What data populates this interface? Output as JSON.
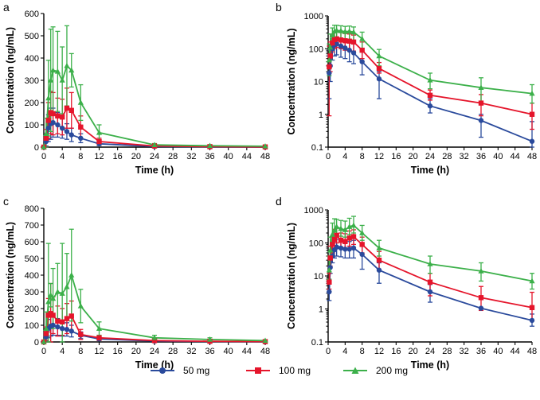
{
  "legend": [
    {
      "label": "50 mg",
      "color": "#2a4a9c",
      "marker": "circle"
    },
    {
      "label": "100 mg",
      "color": "#e5152b",
      "marker": "square"
    },
    {
      "label": "200 mg",
      "color": "#3cb04a",
      "marker": "triangle"
    }
  ],
  "chart_data": [
    {
      "panel": "a",
      "type": "line",
      "yscale": "linear",
      "xlabel": "Time (h)",
      "ylabel": "Concentration (ng/mL)",
      "xlim": [
        0,
        48
      ],
      "ylim": [
        0,
        600
      ],
      "xticks": [
        0,
        4,
        8,
        12,
        16,
        20,
        24,
        28,
        32,
        36,
        40,
        44,
        48
      ],
      "yticks": [
        0,
        100,
        200,
        300,
        400,
        500,
        600
      ],
      "x": [
        0,
        0.5,
        1,
        1.5,
        2,
        3,
        4,
        5,
        6,
        8,
        12,
        24,
        36,
        48
      ],
      "series": [
        {
          "name": "50 mg",
          "values": [
            0,
            25,
            85,
            105,
            110,
            100,
            85,
            70,
            55,
            40,
            15,
            3,
            1,
            0.2
          ],
          "err": [
            0,
            20,
            60,
            70,
            65,
            55,
            45,
            35,
            30,
            20,
            8,
            2,
            1,
            0.3
          ]
        },
        {
          "name": "100 mg",
          "values": [
            0,
            40,
            120,
            155,
            150,
            140,
            135,
            175,
            165,
            90,
            25,
            5,
            2,
            1
          ],
          "err": [
            0,
            40,
            80,
            95,
            95,
            80,
            80,
            90,
            80,
            50,
            15,
            3,
            2,
            1
          ]
        },
        {
          "name": "200 mg",
          "values": [
            0,
            60,
            220,
            300,
            345,
            340,
            300,
            365,
            345,
            200,
            65,
            10,
            6,
            4
          ],
          "err": [
            0,
            70,
            170,
            230,
            195,
            180,
            150,
            180,
            75,
            80,
            35,
            6,
            5,
            3
          ]
        }
      ]
    },
    {
      "panel": "b",
      "type": "line",
      "yscale": "log",
      "xlabel": "Time (h)",
      "ylabel": "Concentration (ng/mL)",
      "xlim": [
        0,
        48
      ],
      "ylim": [
        0.1,
        1000
      ],
      "xticks": [
        0,
        4,
        8,
        12,
        16,
        20,
        24,
        28,
        32,
        36,
        40,
        44,
        48
      ],
      "yticks": [
        0.1,
        1,
        10,
        100,
        1000
      ],
      "x": [
        0.25,
        0.5,
        1,
        1.5,
        2,
        3,
        4,
        5,
        6,
        8,
        12,
        24,
        36,
        48
      ],
      "series": [
        {
          "name": "50 mg",
          "values": [
            18,
            30,
            100,
            130,
            140,
            120,
            105,
            90,
            75,
            40,
            12,
            1.8,
            0.65,
            0.15
          ],
          "lo": [
            3,
            10,
            45,
            60,
            65,
            55,
            50,
            40,
            35,
            16,
            3,
            1.1,
            0.2,
            0.1
          ],
          "hi": [
            60,
            90,
            200,
            220,
            220,
            200,
            190,
            160,
            140,
            80,
            20,
            3,
            1.0,
            0.6
          ]
        },
        {
          "name": "100 mg",
          "values": [
            28,
            60,
            150,
            190,
            200,
            185,
            175,
            170,
            160,
            90,
            25,
            3.8,
            2.2,
            1.0
          ],
          "lo": [
            0.9,
            20,
            80,
            100,
            110,
            100,
            90,
            90,
            85,
            50,
            18,
            2.7,
            0.9,
            0.35
          ],
          "hi": [
            120,
            160,
            280,
            320,
            330,
            310,
            290,
            280,
            260,
            160,
            38,
            5.5,
            4,
            2.2
          ]
        },
        {
          "name": "200 mg",
          "values": [
            45,
            110,
            260,
            340,
            360,
            350,
            330,
            340,
            320,
            200,
            60,
            11,
            6.5,
            4.3
          ],
          "lo": [
            15,
            45,
            130,
            180,
            190,
            180,
            170,
            180,
            170,
            100,
            30,
            6,
            2,
            2.2
          ],
          "hi": [
            140,
            280,
            430,
            520,
            520,
            500,
            480,
            490,
            460,
            320,
            95,
            18,
            13,
            8
          ]
        }
      ]
    },
    {
      "panel": "c",
      "type": "line",
      "yscale": "linear",
      "xlabel": "Time (h)",
      "ylabel": "Concentration (ng/mL)",
      "xlim": [
        0,
        48
      ],
      "ylim": [
        0,
        800
      ],
      "xticks": [
        0,
        4,
        8,
        12,
        16,
        20,
        24,
        28,
        32,
        36,
        40,
        44,
        48
      ],
      "yticks": [
        0,
        100,
        200,
        300,
        400,
        500,
        600,
        700,
        800
      ],
      "x": [
        0,
        0.5,
        1,
        1.5,
        2,
        3,
        4,
        5,
        6,
        8,
        12,
        24,
        36,
        48
      ],
      "series": [
        {
          "name": "50 mg",
          "values": [
            0,
            30,
            80,
            95,
            100,
            90,
            80,
            75,
            65,
            40,
            18,
            5,
            3,
            1
          ],
          "err": [
            0,
            25,
            55,
            60,
            60,
            50,
            45,
            40,
            35,
            20,
            10,
            3,
            2,
            1
          ]
        },
        {
          "name": "100 mg",
          "values": [
            0,
            50,
            160,
            170,
            160,
            125,
            120,
            140,
            155,
            45,
            25,
            8,
            4,
            2
          ],
          "err": [
            0,
            40,
            100,
            180,
            110,
            90,
            80,
            90,
            90,
            30,
            15,
            5,
            3,
            2
          ]
        },
        {
          "name": "200 mg",
          "values": [
            0,
            80,
            240,
            280,
            260,
            300,
            290,
            330,
            400,
            215,
            80,
            25,
            15,
            8
          ],
          "err": [
            0,
            100,
            350,
            70,
            180,
            170,
            300,
            200,
            275,
            100,
            40,
            15,
            10,
            5
          ]
        }
      ]
    },
    {
      "panel": "d",
      "type": "line",
      "yscale": "log",
      "xlabel": "Time (h)",
      "ylabel": "Concentration (ng/mL)",
      "xlim": [
        0,
        48
      ],
      "ylim": [
        0.1,
        1000
      ],
      "xticks": [
        0,
        4,
        8,
        12,
        16,
        20,
        24,
        28,
        32,
        36,
        40,
        44,
        48
      ],
      "yticks": [
        0.1,
        1,
        10,
        100,
        1000
      ],
      "x": [
        0.25,
        0.5,
        1,
        1.5,
        2,
        3,
        4,
        5,
        6,
        8,
        12,
        24,
        36,
        48
      ],
      "series": [
        {
          "name": "50 mg",
          "values": [
            3.3,
            18,
            40,
            62,
            75,
            70,
            65,
            65,
            70,
            45,
            15,
            3.3,
            1.05,
            0.45
          ],
          "lo": [
            1.8,
            12,
            25,
            35,
            40,
            38,
            35,
            35,
            35,
            16,
            6,
            1.6,
            1.0,
            0.3
          ],
          "hi": [
            6,
            30,
            70,
            110,
            130,
            120,
            110,
            110,
            120,
            80,
            25,
            5.5,
            1.1,
            0.7
          ]
        },
        {
          "name": "100 mg",
          "values": [
            6.5,
            35,
            90,
            130,
            170,
            120,
            110,
            140,
            155,
            90,
            30,
            6.5,
            2.2,
            1.1
          ],
          "lo": [
            4,
            20,
            50,
            80,
            100,
            75,
            65,
            80,
            90,
            50,
            15,
            2.5,
            0.9,
            0.45
          ],
          "hi": [
            12,
            80,
            160,
            260,
            280,
            200,
            190,
            230,
            250,
            150,
            55,
            12,
            4.8,
            3.2
          ]
        },
        {
          "name": "200 mg",
          "values": [
            15,
            60,
            180,
            240,
            310,
            270,
            250,
            310,
            340,
            200,
            70,
            23,
            14,
            7
          ],
          "lo": [
            8,
            30,
            100,
            140,
            180,
            160,
            150,
            180,
            200,
            120,
            40,
            12,
            7,
            4
          ],
          "hi": [
            40,
            150,
            400,
            540,
            520,
            480,
            460,
            560,
            640,
            340,
            120,
            40,
            25,
            12
          ]
        }
      ]
    }
  ]
}
